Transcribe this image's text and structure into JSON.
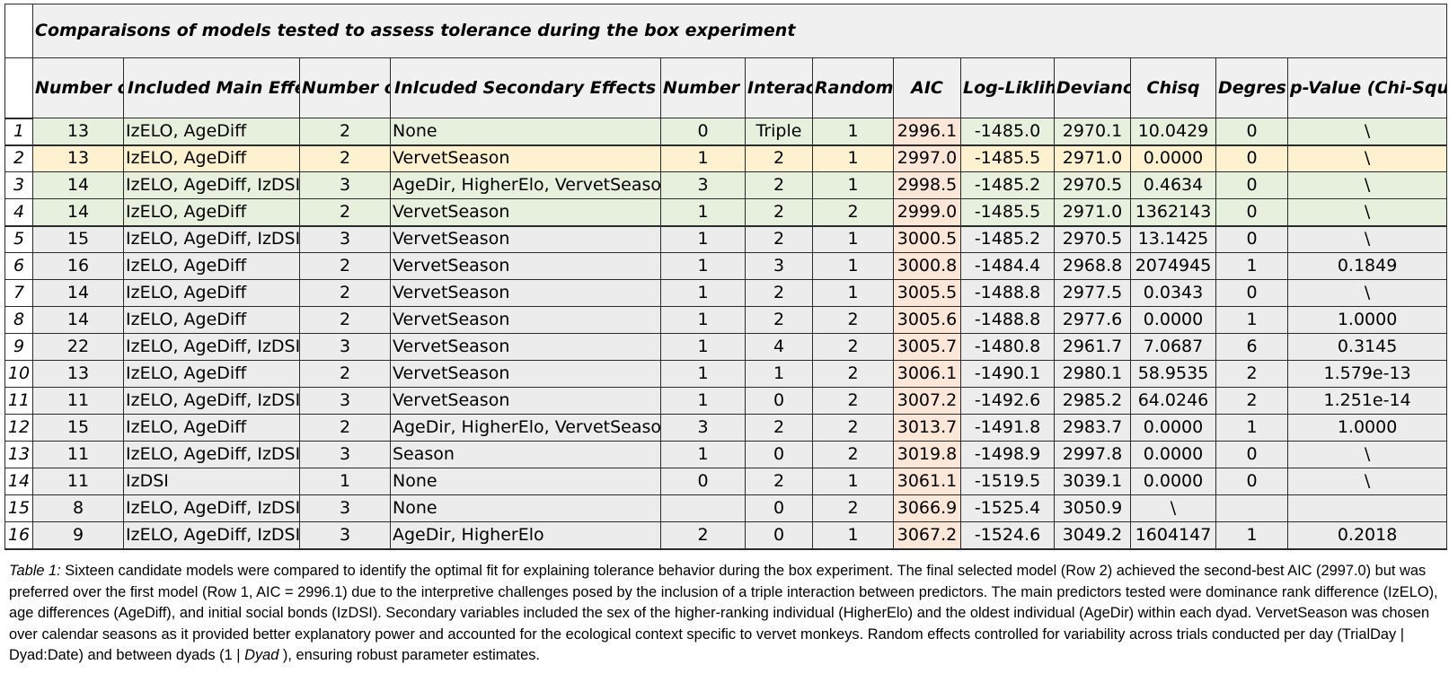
{
  "table": {
    "title": "Comparaisons of models tested to assess tolerance during the box experiment",
    "headers": [
      "Number of Parameters",
      "Included Main Effects",
      "Number of Main Effects",
      "Inlcuded Secondary Effects",
      "Number of Secondary Effects",
      "Interactio n Terms",
      "Random Effects Included",
      "AIC",
      "Log-Liklihood",
      "Deviance",
      "Chisq",
      "Degres of freedom",
      "p-Value (Chi-Square Test)"
    ],
    "row_highlight_colors": {
      "green": "#e6f0dc",
      "yellow": "#fdf1cf",
      "gray": "#ececec",
      "aic_column": "#fbe6d8"
    },
    "rows": [
      {
        "num": "1",
        "cells": [
          "13",
          "IzELO, AgeDiff",
          "2",
          "None",
          "0",
          "Triple",
          "1",
          "2996.1",
          "-1485.0",
          "2970.1",
          "10.0429",
          "0",
          "\\"
        ]
      },
      {
        "num": "2",
        "cells": [
          "13",
          "IzELO, AgeDiff",
          "2",
          "VervetSeason",
          "1",
          "2",
          "1",
          "2997.0",
          "-1485.5",
          "2971.0",
          "0.0000",
          "0",
          "\\"
        ]
      },
      {
        "num": "3",
        "cells": [
          "14",
          "IzELO, AgeDiff, IzDSI",
          "3",
          "AgeDir, HigherElo, VervetSeason",
          "3",
          "2",
          "1",
          "2998.5",
          "-1485.2",
          "2970.5",
          "0.4634",
          "0",
          "\\"
        ]
      },
      {
        "num": "4",
        "cells": [
          "14",
          "IzELO, AgeDiff",
          "2",
          "VervetSeason",
          "1",
          "2",
          "2",
          "2999.0",
          "-1485.5",
          "2971.0",
          "1362143",
          "0",
          "\\"
        ]
      },
      {
        "num": "5",
        "cells": [
          "15",
          "IzELO, AgeDiff, IzDSI",
          "3",
          "VervetSeason",
          "1",
          "2",
          "1",
          "3000.5",
          "-1485.2",
          "2970.5",
          "13.1425",
          "0",
          "\\"
        ]
      },
      {
        "num": "6",
        "cells": [
          "16",
          "IzELO, AgeDiff",
          "2",
          "VervetSeason",
          "1",
          "3",
          "1",
          "3000.8",
          "-1484.4",
          "2968.8",
          "2074945",
          "1",
          "0.1849"
        ]
      },
      {
        "num": "7",
        "cells": [
          "14",
          "IzELO, AgeDiff",
          "2",
          "VervetSeason",
          "1",
          "2",
          "1",
          "3005.5",
          "-1488.8",
          "2977.5",
          "0.0343",
          "0",
          "\\"
        ]
      },
      {
        "num": "8",
        "cells": [
          "14",
          "IzELO, AgeDiff",
          "2",
          "VervetSeason",
          "1",
          "2",
          "2",
          "3005.6",
          "-1488.8",
          "2977.6",
          "0.0000",
          "1",
          "1.0000"
        ]
      },
      {
        "num": "9",
        "cells": [
          "22",
          "IzELO, AgeDiff, IzDSI",
          "3",
          "VervetSeason",
          "1",
          "4",
          "2",
          "3005.7",
          "-1480.8",
          "2961.7",
          "7.0687",
          "6",
          "0.3145"
        ]
      },
      {
        "num": "10",
        "cells": [
          "13",
          "IzELO, AgeDiff",
          "2",
          "VervetSeason",
          "1",
          "1",
          "2",
          "3006.1",
          "-1490.1",
          "2980.1",
          "58.9535",
          "2",
          "1.579e-13"
        ]
      },
      {
        "num": "11",
        "cells": [
          "11",
          "IzELO, AgeDiff, IzDSI",
          "3",
          "VervetSeason",
          "1",
          "0",
          "2",
          "3007.2",
          "-1492.6",
          "2985.2",
          "64.0246",
          "2",
          "1.251e-14"
        ]
      },
      {
        "num": "12",
        "cells": [
          "15",
          "IzELO, AgeDiff",
          "2",
          "AgeDir, HigherElo, VervetSeason",
          "3",
          "2",
          "2",
          "3013.7",
          "-1491.8",
          "2983.7",
          "0.0000",
          "1",
          "1.0000"
        ]
      },
      {
        "num": "13",
        "cells": [
          "11",
          "IzELO, AgeDiff, IzDSI",
          "3",
          "Season",
          "1",
          "0",
          "2",
          "3019.8",
          "-1498.9",
          "2997.8",
          "0.0000",
          "0",
          "\\"
        ]
      },
      {
        "num": "14",
        "cells": [
          "11",
          "IzDSI",
          "1",
          "None",
          "0",
          "2",
          "1",
          "3061.1",
          "-1519.5",
          "3039.1",
          "0.0000",
          "0",
          "\\"
        ]
      },
      {
        "num": "15",
        "cells": [
          "8",
          "IzELO, AgeDiff, IzDSI",
          "3",
          "None",
          "",
          "0",
          "2",
          "3066.9",
          "-1525.4",
          "3050.9",
          "\\",
          "",
          ""
        ]
      },
      {
        "num": "16",
        "cells": [
          "9",
          "IzELO, AgeDiff, IzDSI",
          "3",
          "AgeDir, HigherElo",
          "2",
          "0",
          "1",
          "3067.2",
          "-1524.6",
          "3049.2",
          "1604147",
          "1",
          "0.2018"
        ]
      }
    ]
  },
  "caption": {
    "label": "Table 1:",
    "part1": "  Sixteen candidate models were compared to identify the optimal fit for explaining tolerance behavior during the box experiment. The final selected model (Row 2) achieved the second-best AIC (2997.0) but was preferred over the first model (Row 1, AIC = 2996.1) due to the interpretive challenges posed by the inclusion of a triple interaction between predictors. The main predictors tested were dominance rank difference (IzELO), age differences (AgeDiff), and initial social bonds (IzDSI). Secondary variables included the sex of the higher-ranking individual (HigherElo) and the oldest individual (AgeDir) within each dyad. VervetSeason was chosen over calendar seasons as it provided better explanatory power and accounted for the ecological context specific to vervet monkeys. Random effects controlled for variability across trials conducted per day (TrialDay | Dyad:Date) and between dyads (1 | ",
    "italic": "Dyad",
    "part2": " ), ensuring robust parameter estimates."
  }
}
